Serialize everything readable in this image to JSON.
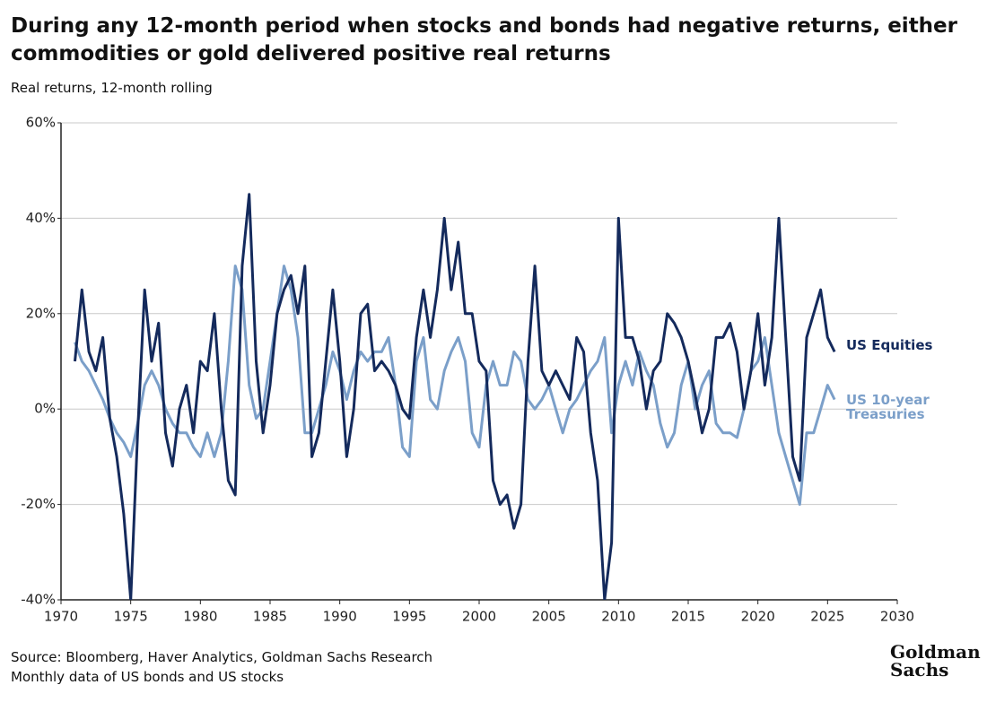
{
  "chart_data": {
    "type": "line",
    "title": "During any 12-month period when stocks and bonds had negative returns, either commodities or gold delivered positive real returns",
    "subtitle": "Real returns, 12-month rolling",
    "source": "Source: Bloomberg, Haver Analytics, Goldman Sachs Research",
    "note": "Monthly data of US bonds and US stocks",
    "logo": "Goldman Sachs",
    "x": [
      1971.0,
      1971.5,
      1972.0,
      1972.5,
      1973.0,
      1973.5,
      1974.0,
      1974.5,
      1975.0,
      1975.5,
      1976.0,
      1976.5,
      1977.0,
      1977.5,
      1978.0,
      1978.5,
      1979.0,
      1979.5,
      1980.0,
      1980.5,
      1981.0,
      1981.5,
      1982.0,
      1982.5,
      1983.0,
      1983.5,
      1984.0,
      1984.5,
      1985.0,
      1985.5,
      1986.0,
      1986.5,
      1987.0,
      1987.5,
      1988.0,
      1988.5,
      1989.0,
      1989.5,
      1990.0,
      1990.5,
      1991.0,
      1991.5,
      1992.0,
      1992.5,
      1993.0,
      1993.5,
      1994.0,
      1994.5,
      1995.0,
      1995.5,
      1996.0,
      1996.5,
      1997.0,
      1997.5,
      1998.0,
      1998.5,
      1999.0,
      1999.5,
      2000.0,
      2000.5,
      2001.0,
      2001.5,
      2002.0,
      2002.5,
      2003.0,
      2003.5,
      2004.0,
      2004.5,
      2005.0,
      2005.5,
      2006.0,
      2006.5,
      2007.0,
      2007.5,
      2008.0,
      2008.5,
      2009.0,
      2009.5,
      2010.0,
      2010.5,
      2011.0,
      2011.5,
      2012.0,
      2012.5,
      2013.0,
      2013.5,
      2014.0,
      2014.5,
      2015.0,
      2015.5,
      2016.0,
      2016.5,
      2017.0,
      2017.5,
      2018.0,
      2018.5,
      2019.0,
      2019.5,
      2020.0,
      2020.5,
      2021.0,
      2021.5,
      2022.0,
      2022.5,
      2023.0,
      2023.5,
      2024.0,
      2024.5,
      2025.0,
      2025.5
    ],
    "series": [
      {
        "name": "US Equities",
        "color": "#142a5c",
        "values": [
          10,
          25,
          12,
          8,
          15,
          -2,
          -10,
          -22,
          -40,
          -5,
          25,
          10,
          18,
          -5,
          -12,
          0,
          5,
          -5,
          10,
          8,
          20,
          0,
          -15,
          -18,
          30,
          45,
          10,
          -5,
          5,
          20,
          25,
          28,
          20,
          30,
          -10,
          -5,
          10,
          25,
          10,
          -10,
          0,
          20,
          22,
          8,
          10,
          8,
          5,
          0,
          -2,
          15,
          25,
          15,
          25,
          40,
          25,
          35,
          20,
          20,
          10,
          8,
          -15,
          -20,
          -18,
          -25,
          -20,
          10,
          30,
          8,
          5,
          8,
          5,
          2,
          15,
          12,
          -5,
          -15,
          -40,
          -28,
          40,
          15,
          15,
          10,
          0,
          8,
          10,
          20,
          18,
          15,
          10,
          3,
          -5,
          0,
          15,
          15,
          18,
          12,
          0,
          8,
          20,
          5,
          15,
          40,
          15,
          -10,
          -15,
          15,
          20,
          25,
          15,
          12
        ]
      },
      {
        "name": "US 10-year Treasuries",
        "color": "#7b9fc9",
        "values": [
          14,
          10,
          8,
          5,
          2,
          -2,
          -5,
          -7,
          -10,
          -3,
          5,
          8,
          5,
          0,
          -3,
          -5,
          -5,
          -8,
          -10,
          -5,
          -10,
          -5,
          10,
          30,
          25,
          5,
          -2,
          0,
          10,
          20,
          30,
          25,
          15,
          -5,
          -5,
          0,
          5,
          12,
          8,
          2,
          8,
          12,
          10,
          12,
          12,
          15,
          5,
          -8,
          -10,
          10,
          15,
          2,
          0,
          8,
          12,
          15,
          10,
          -5,
          -8,
          5,
          10,
          5,
          5,
          12,
          10,
          2,
          0,
          2,
          5,
          0,
          -5,
          0,
          2,
          5,
          8,
          10,
          15,
          -5,
          5,
          10,
          5,
          12,
          8,
          5,
          -3,
          -8,
          -5,
          5,
          10,
          0,
          5,
          8,
          -3,
          -5,
          -5,
          -6,
          0,
          8,
          10,
          15,
          5,
          -5,
          -10,
          -15,
          -20,
          -5,
          -5,
          0,
          5,
          2
        ]
      }
    ],
    "xlim": [
      1970,
      2030
    ],
    "xticks": [
      1970,
      1975,
      1980,
      1985,
      1990,
      1995,
      2000,
      2005,
      2010,
      2015,
      2020,
      2025,
      2030
    ],
    "ylim": [
      -40,
      60
    ],
    "yticks": [
      {
        "value": -40,
        "label": "-40%"
      },
      {
        "value": -20,
        "label": "-20%"
      },
      {
        "value": 0,
        "label": "0%"
      },
      {
        "value": 20,
        "label": "20%"
      },
      {
        "value": 40,
        "label": "40%"
      },
      {
        "value": 60,
        "label": "60%"
      }
    ],
    "grid": true
  }
}
